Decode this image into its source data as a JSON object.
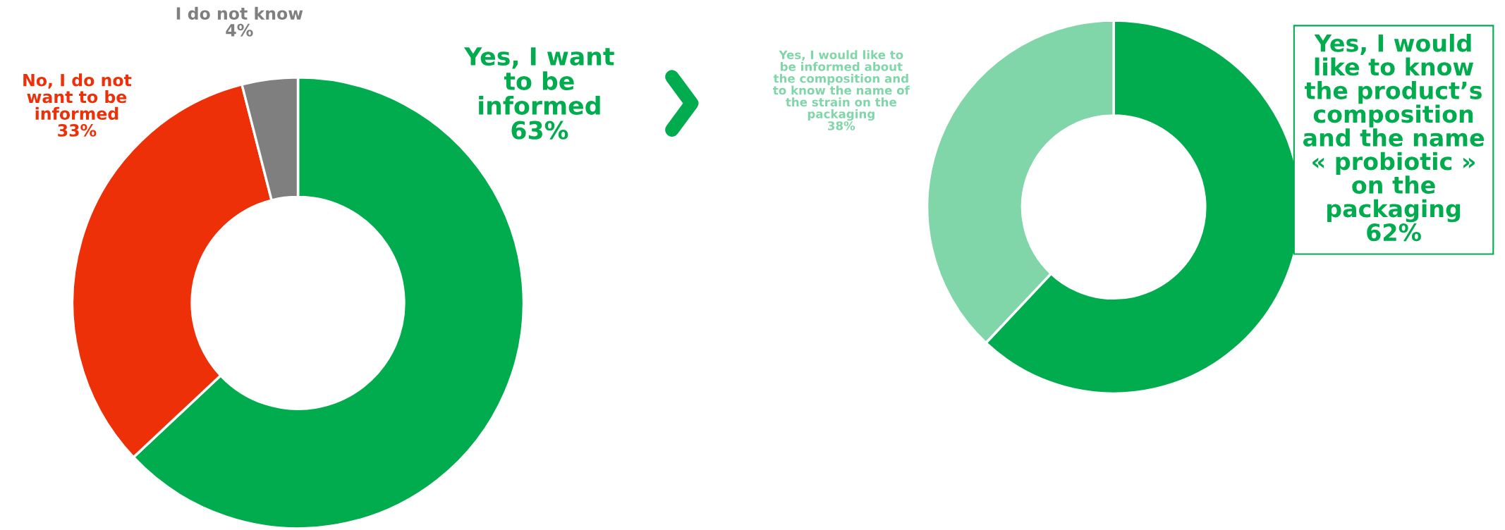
{
  "chart_data": [
    {
      "type": "donut",
      "categories": [
        "Yes, I want\nto be\ninformed",
        "No, I do not\nwant to be\ninformed",
        "I do not know"
      ],
      "values": [
        63,
        33,
        4
      ],
      "colors": [
        "#00ac4e",
        "#ee3008",
        "#7f7f7f"
      ],
      "value_labels": [
        "63%",
        "33%",
        "4%"
      ]
    },
    {
      "type": "donut",
      "categories": [
        "Yes, I would\nlike to know\nthe product’s\ncomposition\nand the name\n« probiotic »\non the\npackaging",
        "Yes, I would like to\nbe informed about\nthe composition and\nto know the name of\nthe strain on the\npackaging"
      ],
      "values": [
        62,
        38
      ],
      "colors": [
        "#00ac4e",
        "#80d6a8"
      ],
      "value_labels": [
        "62%",
        "38%"
      ]
    }
  ]
}
